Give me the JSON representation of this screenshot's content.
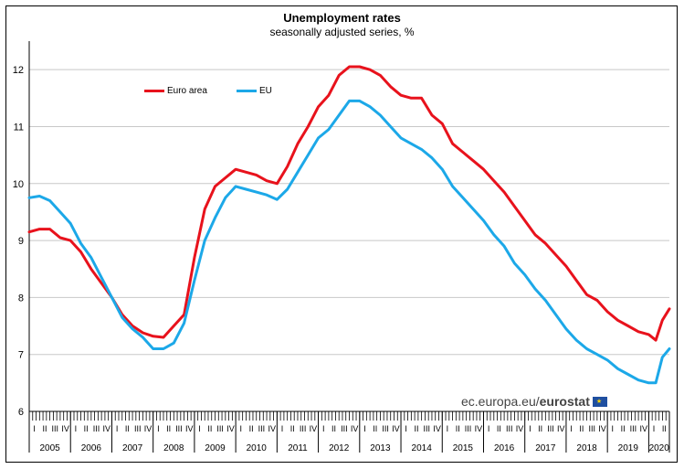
{
  "chart_data": {
    "type": "line",
    "title": "Unemployment rates",
    "subtitle": "seasonally adjusted series, %",
    "ylim": [
      6,
      12.5
    ],
    "yticks": [
      6,
      7,
      8,
      9,
      10,
      11,
      12
    ],
    "ytick_labels": [
      "6",
      "7",
      "8",
      "9",
      "10",
      "11",
      "12"
    ],
    "x_unit": "year",
    "xlim": [
      2005,
      2020.5
    ],
    "grid": "horizontal",
    "legend_position": "top-left",
    "quarter_labels": [
      "I",
      "II",
      "III",
      "IV"
    ],
    "years": [
      "2005",
      "2006",
      "2007",
      "2008",
      "2009",
      "2010",
      "2011",
      "2012",
      "2013",
      "2014",
      "2015",
      "2016",
      "2017",
      "2018",
      "2019",
      "2020"
    ],
    "series": [
      {
        "name": "Euro area",
        "color": "#e8121c",
        "x": [
          2005.0,
          2005.25,
          2005.5,
          2005.75,
          2006.0,
          2006.25,
          2006.5,
          2006.75,
          2007.0,
          2007.25,
          2007.5,
          2007.75,
          2008.0,
          2008.25,
          2008.5,
          2008.75,
          2009.0,
          2009.25,
          2009.5,
          2009.75,
          2010.0,
          2010.25,
          2010.5,
          2010.75,
          2011.0,
          2011.25,
          2011.5,
          2011.75,
          2012.0,
          2012.25,
          2012.5,
          2012.75,
          2013.0,
          2013.25,
          2013.5,
          2013.75,
          2014.0,
          2014.25,
          2014.5,
          2014.75,
          2015.0,
          2015.25,
          2015.5,
          2015.75,
          2016.0,
          2016.25,
          2016.5,
          2016.75,
          2017.0,
          2017.25,
          2017.5,
          2017.75,
          2018.0,
          2018.25,
          2018.5,
          2018.75,
          2019.0,
          2019.25,
          2019.5,
          2019.75,
          2020.0,
          2020.17,
          2020.33,
          2020.5
        ],
        "values": [
          9.15,
          9.2,
          9.2,
          9.05,
          9.0,
          8.8,
          8.5,
          8.25,
          8.0,
          7.7,
          7.5,
          7.38,
          7.32,
          7.3,
          7.5,
          7.7,
          8.7,
          9.55,
          9.95,
          10.1,
          10.25,
          10.2,
          10.15,
          10.05,
          10.0,
          10.3,
          10.7,
          11.0,
          11.35,
          11.55,
          11.9,
          12.05,
          12.05,
          12.0,
          11.9,
          11.7,
          11.55,
          11.5,
          11.5,
          11.2,
          11.05,
          10.7,
          10.55,
          10.4,
          10.25,
          10.05,
          9.85,
          9.6,
          9.35,
          9.1,
          8.95,
          8.75,
          8.55,
          8.3,
          8.05,
          7.95,
          7.75,
          7.6,
          7.5,
          7.4,
          7.35,
          7.25,
          7.6,
          7.8
        ]
      },
      {
        "name": "EU",
        "color": "#1ca8e8",
        "x": [
          2005.0,
          2005.25,
          2005.5,
          2005.75,
          2006.0,
          2006.25,
          2006.5,
          2006.75,
          2007.0,
          2007.25,
          2007.5,
          2007.75,
          2008.0,
          2008.25,
          2008.5,
          2008.75,
          2009.0,
          2009.25,
          2009.5,
          2009.75,
          2010.0,
          2010.25,
          2010.5,
          2010.75,
          2011.0,
          2011.25,
          2011.5,
          2011.75,
          2012.0,
          2012.25,
          2012.5,
          2012.75,
          2013.0,
          2013.25,
          2013.5,
          2013.75,
          2014.0,
          2014.25,
          2014.5,
          2014.75,
          2015.0,
          2015.25,
          2015.5,
          2015.75,
          2016.0,
          2016.25,
          2016.5,
          2016.75,
          2017.0,
          2017.25,
          2017.5,
          2017.75,
          2018.0,
          2018.25,
          2018.5,
          2018.75,
          2019.0,
          2019.25,
          2019.5,
          2019.75,
          2020.0,
          2020.17,
          2020.33,
          2020.5
        ],
        "values": [
          9.75,
          9.78,
          9.7,
          9.5,
          9.3,
          8.95,
          8.7,
          8.35,
          8.0,
          7.65,
          7.45,
          7.3,
          7.1,
          7.1,
          7.2,
          7.55,
          8.3,
          9.0,
          9.4,
          9.75,
          9.95,
          9.9,
          9.85,
          9.8,
          9.72,
          9.9,
          10.2,
          10.5,
          10.8,
          10.95,
          11.2,
          11.45,
          11.45,
          11.35,
          11.2,
          11.0,
          10.8,
          10.7,
          10.6,
          10.45,
          10.25,
          9.95,
          9.75,
          9.55,
          9.35,
          9.1,
          8.9,
          8.6,
          8.4,
          8.15,
          7.95,
          7.7,
          7.45,
          7.25,
          7.1,
          7.0,
          6.9,
          6.75,
          6.65,
          6.55,
          6.5,
          6.5,
          6.95,
          7.1
        ]
      }
    ]
  },
  "source": {
    "prefix": "ec.europa.eu/",
    "brand": "eurostat"
  }
}
